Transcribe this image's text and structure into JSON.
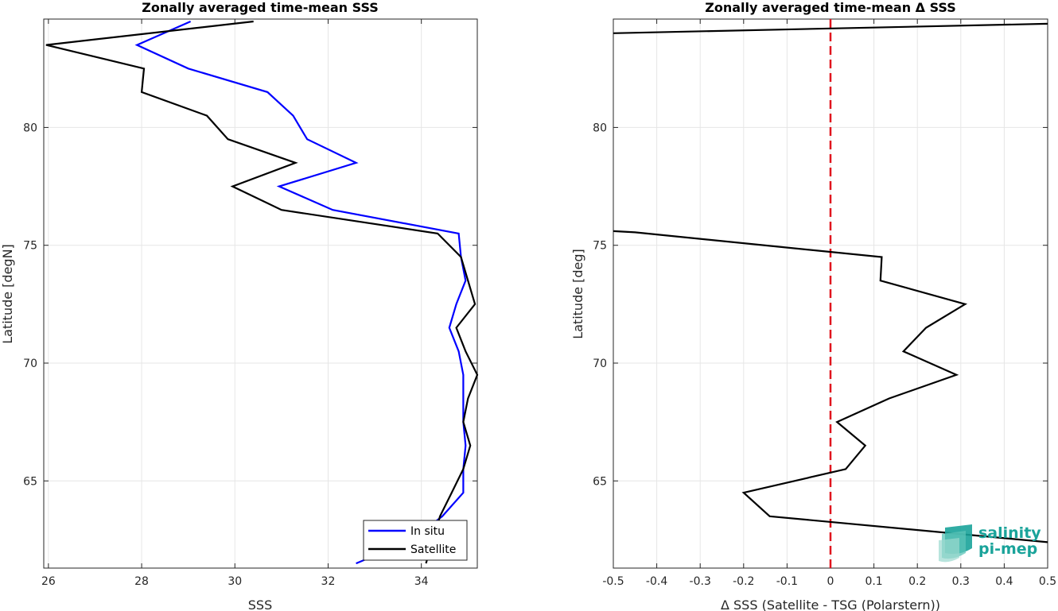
{
  "logo": {
    "line1": "salinity",
    "line2": "pi-mep",
    "color": "#1aa39a"
  },
  "chart_data": [
    {
      "type": "line",
      "title": "Zonally averaged time-mean SSS",
      "xlabel": "SSS",
      "ylabel": "Latitude [degN]",
      "xlim": [
        25.9,
        35.2
      ],
      "ylim": [
        61.3,
        84.6
      ],
      "xticks": [
        26,
        28,
        30,
        32,
        34
      ],
      "yticks": [
        65,
        70,
        75,
        80
      ],
      "grid": true,
      "legend": {
        "position": "bottom-right",
        "entries": [
          "In situ",
          "Satellite"
        ]
      },
      "series": [
        {
          "name": "In situ",
          "color": "#0000ff",
          "points": [
            [
              29.05,
              84.5
            ],
            [
              27.9,
              83.5
            ],
            [
              29.0,
              82.5
            ],
            [
              30.7,
              81.5
            ],
            [
              31.25,
              80.5
            ],
            [
              31.55,
              79.5
            ],
            [
              32.6,
              78.5
            ],
            [
              30.95,
              77.5
            ],
            [
              32.1,
              76.5
            ],
            [
              34.8,
              75.5
            ],
            [
              34.85,
              74.5
            ],
            [
              34.95,
              73.5
            ],
            [
              34.75,
              72.5
            ],
            [
              34.6,
              71.5
            ],
            [
              34.8,
              70.5
            ],
            [
              34.9,
              69.5
            ],
            [
              34.9,
              68.5
            ],
            [
              34.9,
              67.5
            ],
            [
              34.95,
              66.5
            ],
            [
              34.9,
              65.5
            ],
            [
              34.9,
              64.5
            ],
            [
              34.45,
              63.5
            ],
            [
              33.8,
              62.5
            ],
            [
              32.6,
              61.5
            ]
          ]
        },
        {
          "name": "Satellite",
          "color": "#000000",
          "points": [
            [
              30.4,
              84.5
            ],
            [
              25.95,
              83.5
            ],
            [
              28.05,
              82.5
            ],
            [
              28.0,
              81.5
            ],
            [
              29.4,
              80.5
            ],
            [
              29.85,
              79.5
            ],
            [
              31.3,
              78.5
            ],
            [
              29.95,
              77.5
            ],
            [
              31.0,
              76.5
            ],
            [
              34.35,
              75.5
            ],
            [
              34.85,
              74.5
            ],
            [
              35.0,
              73.5
            ],
            [
              35.15,
              72.5
            ],
            [
              34.75,
              71.5
            ],
            [
              34.95,
              70.5
            ],
            [
              35.2,
              69.5
            ],
            [
              35.0,
              68.5
            ],
            [
              34.9,
              67.5
            ],
            [
              35.05,
              66.5
            ],
            [
              34.9,
              65.5
            ],
            [
              34.65,
              64.5
            ],
            [
              34.4,
              63.5
            ],
            [
              34.25,
              62.5
            ],
            [
              34.1,
              61.5
            ]
          ]
        }
      ]
    },
    {
      "type": "line",
      "title": "Zonally averaged time-mean Δ SSS",
      "xlabel": "Δ SSS (Satellite - TSG (Polarstern))",
      "ylabel": "Latitude [deg]",
      "xlim": [
        -0.5,
        0.5
      ],
      "ylim": [
        61.3,
        84.6
      ],
      "xticks": [
        -0.5,
        -0.4,
        -0.3,
        -0.2,
        -0.1,
        0,
        0.1,
        0.2,
        0.3,
        0.4,
        0.5
      ],
      "xticklabels": [
        "-0.5",
        "-0.4",
        "-0.3",
        "-0.2",
        "-0.1",
        "0",
        "0.1",
        "0.2",
        "0.3",
        "0.4",
        "0.5"
      ],
      "yticks": [
        65,
        70,
        75,
        80
      ],
      "grid": true,
      "reference_line": {
        "x": 0,
        "color": "#e0141e",
        "style": "dashed"
      },
      "series": [
        {
          "color": "#000000",
          "segments": [
            [
              [
                -0.5,
                84.0
              ],
              [
                0.5,
                84.4
              ]
            ],
            [
              [
                -0.5,
                75.6
              ],
              [
                -0.45,
                75.55
              ],
              [
                0.118,
                74.5
              ],
              [
                0.115,
                73.5
              ],
              [
                0.31,
                72.5
              ],
              [
                0.22,
                71.5
              ],
              [
                0.168,
                70.5
              ],
              [
                0.29,
                69.5
              ],
              [
                0.135,
                68.5
              ],
              [
                0.015,
                67.5
              ],
              [
                0.08,
                66.5
              ],
              [
                0.035,
                65.5
              ],
              [
                -0.2,
                64.5
              ],
              [
                -0.14,
                63.5
              ],
              [
                0.5,
                62.4
              ]
            ]
          ]
        }
      ]
    }
  ]
}
